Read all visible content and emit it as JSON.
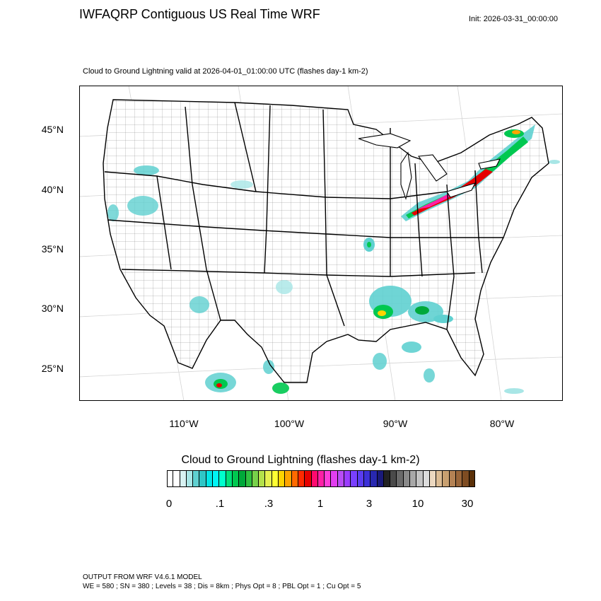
{
  "header": {
    "title": "IWFAQRP Contiguous US Real Time WRF",
    "init": "Init: 2026-03-31_00:00:00",
    "subtitle": "Cloud to Ground Lightning valid at 2026-04-01_01:00:00 UTC   (flashes day-1 km-2)"
  },
  "map": {
    "lat_labels": [
      "45°N",
      "40°N",
      "35°N",
      "30°N",
      "25°N"
    ],
    "lon_labels": [
      "110°W",
      "100°W",
      "90°W",
      "80°W"
    ],
    "background": "#ffffff",
    "boundary_color": "#000000"
  },
  "legend": {
    "title": "Cloud to Ground Lightning  (flashes day-1 km-2)",
    "tick_labels": [
      "0",
      ".1",
      ".3",
      "1",
      "3",
      "10",
      "30"
    ],
    "colors": [
      "#ffffff",
      "#ffffff",
      "#d8f2f2",
      "#a8e6e6",
      "#5fd0d0",
      "#2fc6c6",
      "#00e6e6",
      "#00f5f5",
      "#00ffcc",
      "#00e07a",
      "#00c850",
      "#00a83a",
      "#30c040",
      "#78d24a",
      "#b4e14a",
      "#e6f050",
      "#ffff33",
      "#ffd400",
      "#ffa500",
      "#ff6a00",
      "#ff2a00",
      "#e60000",
      "#ff0a6e",
      "#ff1fa6",
      "#ff3dd8",
      "#e23ef0",
      "#b84cf5",
      "#9a3cff",
      "#7a40ff",
      "#5a3cf0",
      "#3c30d8",
      "#2828b0",
      "#1a1a7a",
      "#222222",
      "#4a4a4a",
      "#6a6a6a",
      "#8a8a8a",
      "#a8a8a8",
      "#c4c4c4",
      "#dcdcdc",
      "#ecd8c0",
      "#dcbc94",
      "#c8a070",
      "#b48254",
      "#9a663a",
      "#7e4c22",
      "#5a3008"
    ]
  },
  "footer": {
    "line1": "OUTPUT FROM WRF V4.6.1 MODEL",
    "line2": "WE = 580 ; SN = 380 ; Levels = 38 ; Dis = 8km ; Phys Opt = 8 ; PBL Opt = 1 ; Cu Opt = 5"
  }
}
